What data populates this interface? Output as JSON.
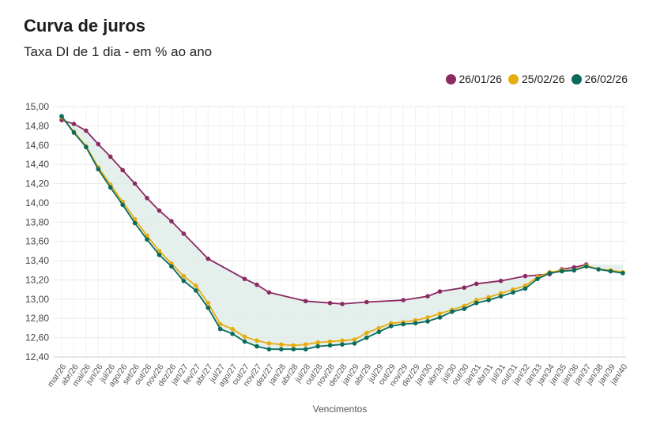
{
  "title": "Curva de juros",
  "subtitle": "Taxa DI de 1 dia - em % ao ano",
  "colors": {
    "s1": "#8b2a63",
    "s2": "#e6ad10",
    "s3": "#0a6a5c",
    "band": "#dfece8",
    "grid": "#e8e8e8"
  },
  "chart_data": {
    "type": "line",
    "title": "Curva de juros",
    "subtitle": "Taxa DI de 1 dia - em % ao ano",
    "xlabel": "Vencimentos",
    "ylabel": "",
    "ylim": [
      12.4,
      15.0
    ],
    "yticks": [
      "15,00",
      "14,80",
      "14,60",
      "14,40",
      "14,20",
      "14,00",
      "13,80",
      "13,60",
      "13,40",
      "13,20",
      "13,00",
      "12,80",
      "12,60",
      "12,40"
    ],
    "ytick_values": [
      15.0,
      14.8,
      14.6,
      14.4,
      14.2,
      14.0,
      13.8,
      13.6,
      13.4,
      13.2,
      13.0,
      12.8,
      12.6,
      12.4
    ],
    "categories": [
      "mar/26",
      "abr/26",
      "mai/26",
      "jun/26",
      "jul/26",
      "ago/26",
      "set/26",
      "out/26",
      "nov/26",
      "dez/26",
      "jan/27",
      "fev/27",
      "abr/27",
      "jul/27",
      "ago/27",
      "out/27",
      "nov/27",
      "dez/27",
      "jan/28",
      "abr/28",
      "jul/28",
      "out/28",
      "nov/28",
      "dez/28",
      "jan/29",
      "abr/29",
      "jul/29",
      "out/29",
      "nov/29",
      "dez/29",
      "jan/30",
      "abr/30",
      "jul/30",
      "out/30",
      "jan/31",
      "abr/31",
      "jul/31",
      "out/31",
      "jan/32",
      "jan/33",
      "jan/34",
      "jan/35",
      "jan/36",
      "jan/37",
      "jan/38",
      "jan/39",
      "jan/40"
    ],
    "legend_position": "top-right",
    "grid": true,
    "series": [
      {
        "name": "26/01/26",
        "color": "#8b2a63",
        "x": [
          0,
          1,
          2,
          3,
          4,
          5,
          6,
          7,
          8,
          9,
          10,
          12,
          15,
          16,
          17,
          20,
          22,
          23,
          25,
          28,
          30,
          31,
          33,
          34,
          36,
          38,
          40,
          41,
          42,
          43
        ],
        "values": [
          14.86,
          14.82,
          14.75,
          14.61,
          14.48,
          14.34,
          14.2,
          14.05,
          13.92,
          13.81,
          13.68,
          13.42,
          13.21,
          13.15,
          13.07,
          12.98,
          12.96,
          12.95,
          12.97,
          12.99,
          13.03,
          13.08,
          13.12,
          13.16,
          13.19,
          13.24,
          13.26,
          13.31,
          13.33,
          13.36
        ]
      },
      {
        "name": "25/02/26",
        "color": "#e6ad10",
        "x": [
          0,
          1,
          2,
          3,
          4,
          5,
          6,
          7,
          8,
          9,
          10,
          11,
          12,
          13,
          14,
          15,
          16,
          17,
          18,
          19,
          20,
          21,
          22,
          23,
          24,
          25,
          26,
          27,
          28,
          29,
          30,
          31,
          32,
          33,
          34,
          35,
          36,
          37,
          38,
          39,
          40,
          41,
          42,
          43,
          44,
          45,
          46
        ],
        "values": [
          14.89,
          14.74,
          14.59,
          14.37,
          14.19,
          14.01,
          13.83,
          13.66,
          13.5,
          13.37,
          13.24,
          13.14,
          12.96,
          12.74,
          12.69,
          12.61,
          12.57,
          12.54,
          12.53,
          12.52,
          12.53,
          12.55,
          12.56,
          12.57,
          12.58,
          12.65,
          12.7,
          12.75,
          12.76,
          12.78,
          12.81,
          12.85,
          12.89,
          12.93,
          12.99,
          13.02,
          13.06,
          13.1,
          13.14,
          13.23,
          13.28,
          13.3,
          13.3,
          13.35,
          13.31,
          13.3,
          13.28
        ]
      },
      {
        "name": "26/02/26",
        "color": "#0a6a5c",
        "x": [
          0,
          1,
          2,
          3,
          4,
          5,
          6,
          7,
          8,
          9,
          10,
          11,
          12,
          13,
          14,
          15,
          16,
          17,
          18,
          19,
          20,
          21,
          22,
          23,
          24,
          25,
          26,
          27,
          28,
          29,
          30,
          31,
          32,
          33,
          34,
          35,
          36,
          37,
          38,
          39,
          40,
          41,
          42,
          43,
          44,
          45,
          46
        ],
        "values": [
          14.9,
          14.73,
          14.58,
          14.35,
          14.16,
          13.98,
          13.79,
          13.62,
          13.46,
          13.34,
          13.19,
          13.09,
          12.91,
          12.69,
          12.64,
          12.56,
          12.51,
          12.48,
          12.48,
          12.48,
          12.48,
          12.51,
          12.52,
          12.53,
          12.54,
          12.6,
          12.66,
          12.72,
          12.74,
          12.75,
          12.77,
          12.81,
          12.87,
          12.9,
          12.96,
          12.99,
          13.03,
          13.07,
          13.11,
          13.21,
          13.27,
          13.29,
          13.3,
          13.34,
          13.31,
          13.29,
          13.27
        ]
      }
    ]
  }
}
